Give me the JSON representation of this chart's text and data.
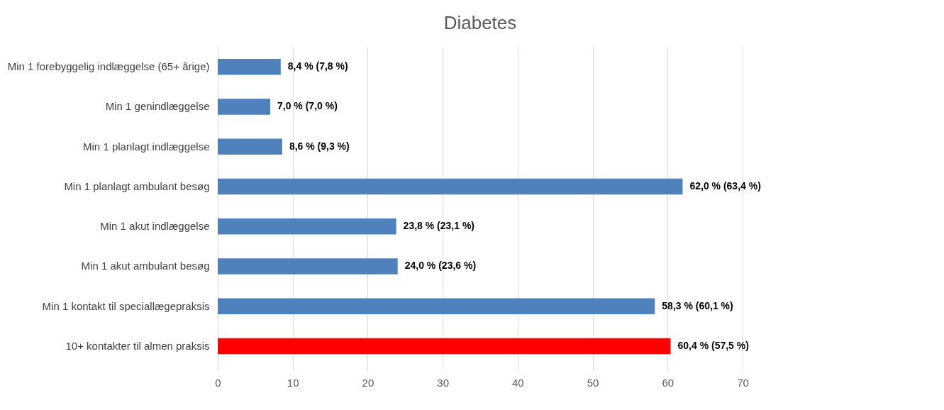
{
  "chart_data": {
    "type": "bar",
    "orientation": "horizontal",
    "title": "Diabetes",
    "categories": [
      "Min 1 forebyggelig indlæggelse (65+ årige)",
      "Min 1 genindlæggelse",
      "Min 1 planlagt indlæggelse",
      "Min 1 planlagt ambulant besøg",
      "Min 1 akut indlæggelse",
      "Min 1 akut ambulant besøg",
      "Min 1 kontakt til speciallægepraksis",
      "10+ kontakter til almen praksis"
    ],
    "values": [
      8.4,
      7.0,
      8.6,
      62.0,
      23.8,
      24.0,
      58.3,
      60.4
    ],
    "colors": [
      "#4f81bd",
      "#4f81bd",
      "#4f81bd",
      "#4f81bd",
      "#4f81bd",
      "#4f81bd",
      "#4f81bd",
      "#ff0000"
    ],
    "value_labels": [
      "8,4 % (7,8 %)",
      "7,0 % (7,0 %)",
      "8,6 % (9,3 %)",
      "62,0 % (63,4 %)",
      "23,8 % (23,1 %)",
      "24,0 % (23,6 %)",
      "58,3 % (60,1 %)",
      "60,4 % (57,5 %)"
    ],
    "xlim": [
      0,
      70
    ],
    "xticks": [
      0,
      10,
      20,
      30,
      40,
      50,
      60,
      70
    ],
    "grid": "x"
  }
}
